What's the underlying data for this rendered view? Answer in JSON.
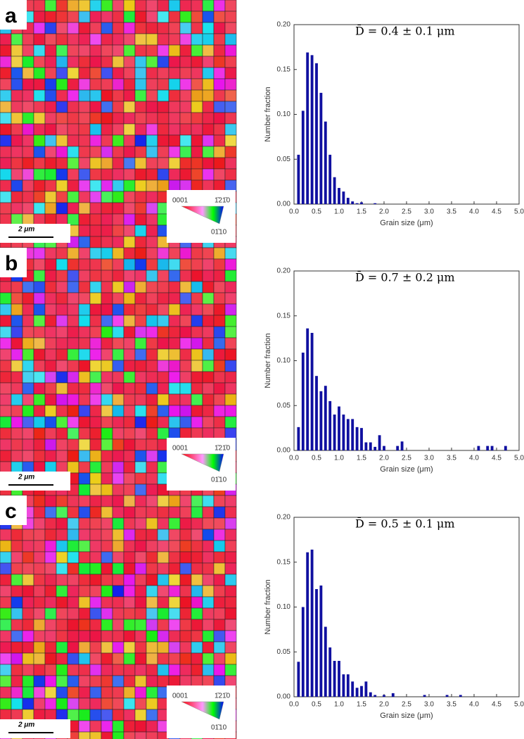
{
  "panels": [
    {
      "label": "a",
      "scale_bar": "2 μm",
      "legend": [
        "0001",
        "1̄21̄0",
        "01̄10"
      ]
    },
    {
      "label": "b",
      "scale_bar": "2 μm",
      "legend": [
        "0001",
        "1̄21̄0",
        "01̄10"
      ]
    },
    {
      "label": "c",
      "scale_bar": "2 μm",
      "legend": [
        "0001",
        "1̄21̄0",
        "01̄10"
      ]
    }
  ],
  "chart_data": [
    {
      "type": "bar",
      "annotation": "D̄ = 0.4 ± 0.1 μm",
      "x_label": "Grain size (μm)",
      "y_label": "Number fraction",
      "color": "#1010a0",
      "x": [
        0.1,
        0.2,
        0.3,
        0.4,
        0.5,
        0.6,
        0.7,
        0.8,
        0.9,
        1.0,
        1.1,
        1.2,
        1.3,
        1.4,
        1.5,
        1.8
      ],
      "values": [
        0.055,
        0.104,
        0.169,
        0.166,
        0.157,
        0.124,
        0.092,
        0.055,
        0.03,
        0.018,
        0.014,
        0.007,
        0.003,
        0.001,
        0.002,
        0.001
      ],
      "xlim": [
        0,
        5
      ],
      "ylim": [
        0,
        0.2
      ],
      "xticks": [
        {
          "value": 0,
          "label": "0.0"
        },
        {
          "value": 0.5,
          "label": "0.5"
        },
        {
          "value": 1,
          "label": "1.0"
        },
        {
          "value": 1.5,
          "label": "1.5"
        },
        {
          "value": 2,
          "label": "2.0"
        },
        {
          "value": 2.5,
          "label": "2.5"
        },
        {
          "value": 3,
          "label": "3.0"
        },
        {
          "value": 3.5,
          "label": "3.5"
        },
        {
          "value": 4,
          "label": "4.0"
        },
        {
          "value": 4.5,
          "label": "4.5"
        },
        {
          "value": 5,
          "label": "5.0"
        }
      ],
      "yticks": [
        {
          "value": 0,
          "label": "0.00"
        },
        {
          "value": 0.05,
          "label": "0.05"
        },
        {
          "value": 0.1,
          "label": "0.10"
        },
        {
          "value": 0.15,
          "label": "0.15"
        },
        {
          "value": 0.2,
          "label": "0.20"
        }
      ]
    },
    {
      "type": "bar",
      "annotation": "D̄ = 0.7 ± 0.2 μm",
      "x_label": "Grain size (μm)",
      "y_label": "Number fraction",
      "color": "#1010a0",
      "x": [
        0.1,
        0.2,
        0.3,
        0.4,
        0.5,
        0.6,
        0.7,
        0.8,
        0.9,
        1.0,
        1.1,
        1.2,
        1.3,
        1.4,
        1.5,
        1.6,
        1.7,
        1.8,
        1.9,
        2.0,
        2.3,
        2.4,
        4.1,
        4.3,
        4.4,
        4.7
      ],
      "values": [
        0.026,
        0.109,
        0.136,
        0.131,
        0.083,
        0.066,
        0.072,
        0.055,
        0.04,
        0.049,
        0.04,
        0.035,
        0.035,
        0.026,
        0.025,
        0.009,
        0.009,
        0.004,
        0.017,
        0.005,
        0.005,
        0.01,
        0.005,
        0.005,
        0.005,
        0.005
      ],
      "xlim": [
        0,
        5
      ],
      "ylim": [
        0,
        0.2
      ],
      "xticks": [
        {
          "value": 0,
          "label": "0.0"
        },
        {
          "value": 0.5,
          "label": "0.5"
        },
        {
          "value": 1,
          "label": "1.0"
        },
        {
          "value": 1.5,
          "label": "1.5"
        },
        {
          "value": 2,
          "label": "2.0"
        },
        {
          "value": 2.5,
          "label": "2.5"
        },
        {
          "value": 3,
          "label": "3.0"
        },
        {
          "value": 3.5,
          "label": "3.5"
        },
        {
          "value": 4,
          "label": "4.0"
        },
        {
          "value": 4.5,
          "label": "4.5"
        },
        {
          "value": 5,
          "label": "5.0"
        }
      ],
      "yticks": [
        {
          "value": 0,
          "label": "0.00"
        },
        {
          "value": 0.05,
          "label": "0.05"
        },
        {
          "value": 0.1,
          "label": "0.10"
        },
        {
          "value": 0.15,
          "label": "0.15"
        },
        {
          "value": 0.2,
          "label": "0.20"
        }
      ]
    },
    {
      "type": "bar",
      "annotation": "D̄ = 0.5 ± 0.1 μm",
      "x_label": "Grain size (μm)",
      "y_label": "Number fraction",
      "color": "#1010a0",
      "x": [
        0.1,
        0.2,
        0.3,
        0.4,
        0.5,
        0.6,
        0.7,
        0.8,
        0.9,
        1.0,
        1.1,
        1.2,
        1.3,
        1.4,
        1.5,
        1.6,
        1.7,
        1.8,
        2.0,
        2.2,
        2.9,
        3.4,
        3.7
      ],
      "values": [
        0.039,
        0.1,
        0.161,
        0.164,
        0.12,
        0.124,
        0.078,
        0.055,
        0.04,
        0.04,
        0.025,
        0.025,
        0.017,
        0.01,
        0.012,
        0.017,
        0.005,
        0.002,
        0.002,
        0.004,
        0.002,
        0.002,
        0.002
      ],
      "xlim": [
        0,
        5
      ],
      "ylim": [
        0,
        0.2
      ],
      "xticks": [
        {
          "value": 0,
          "label": "0.0"
        },
        {
          "value": 0.5,
          "label": "0.5"
        },
        {
          "value": 1,
          "label": "1.0"
        },
        {
          "value": 1.5,
          "label": "1.5"
        },
        {
          "value": 2,
          "label": "2.0"
        },
        {
          "value": 2.5,
          "label": "2.5"
        },
        {
          "value": 3,
          "label": "3.0"
        },
        {
          "value": 3.5,
          "label": "3.5"
        },
        {
          "value": 4,
          "label": "4.0"
        },
        {
          "value": 4.5,
          "label": "4.5"
        },
        {
          "value": 5,
          "label": "5.0"
        }
      ],
      "yticks": [
        {
          "value": 0,
          "label": "0.00"
        },
        {
          "value": 0.05,
          "label": "0.05"
        },
        {
          "value": 0.1,
          "label": "0.10"
        },
        {
          "value": 0.15,
          "label": "0.15"
        },
        {
          "value": 0.2,
          "label": "0.20"
        }
      ]
    }
  ]
}
